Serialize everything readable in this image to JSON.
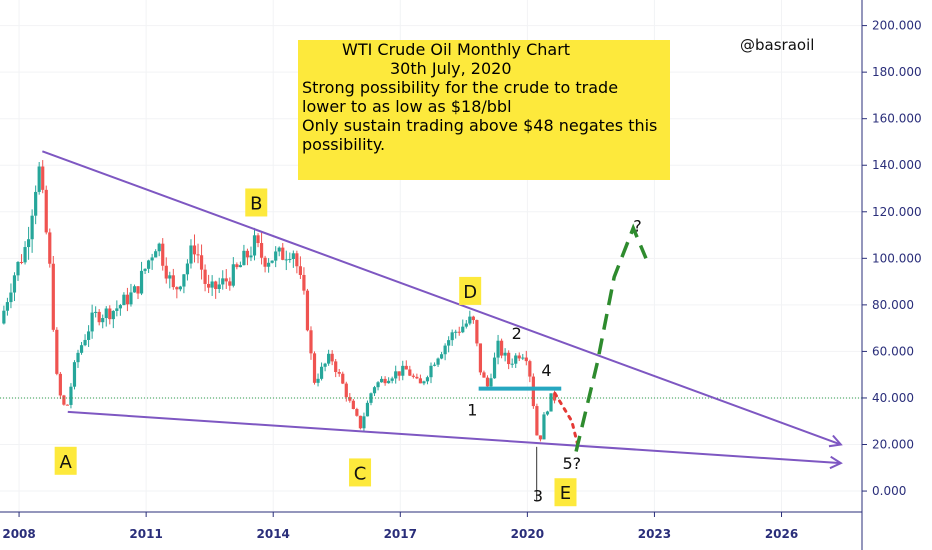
{
  "handle": "@basraoil",
  "annotation": {
    "lines": [
      "WTI Crude Oil Monthly Chart",
      "30th July, 2020",
      "Strong possibility for the crude to trade",
      "lower to as low as $18/bbl",
      "Only sustain trading above $48 negates this",
      "possibility."
    ]
  },
  "colors": {
    "up": "#26a69a",
    "down": "#ef5350",
    "trendline": "#7e57c2",
    "support": "#26a7c0",
    "projection": "#2e8b2e",
    "dotted_projection": "#e53935",
    "label_bg": "#fde93c",
    "axis_text": "#2a2e7a"
  },
  "chart_data": {
    "type": "candlestick",
    "x_ticks": [
      "2008",
      "2011",
      "2014",
      "2017",
      "2020",
      "2023",
      "2026"
    ],
    "y_ticks": [
      "0.000",
      "20.000",
      "40.000",
      "60.000",
      "80.000",
      "100.000",
      "120.000",
      "140.000",
      "160.000",
      "180.000",
      "200.000"
    ],
    "xlim": [
      2007.55,
      2027.9
    ],
    "ylim": [
      -9,
      211
    ],
    "current_price_line": 40,
    "price_path": [
      [
        2007.6,
        72
      ],
      [
        2007.9,
        92
      ],
      [
        2008.2,
        105
      ],
      [
        2008.5,
        140
      ],
      [
        2008.75,
        100
      ],
      [
        2008.95,
        44
      ],
      [
        2009.15,
        34
      ],
      [
        2009.4,
        58
      ],
      [
        2009.8,
        75
      ],
      [
        2010.3,
        78
      ],
      [
        2010.8,
        86
      ],
      [
        2011.3,
        108
      ],
      [
        2011.7,
        85
      ],
      [
        2012.2,
        106
      ],
      [
        2012.5,
        85
      ],
      [
        2012.9,
        90
      ],
      [
        2013.2,
        95
      ],
      [
        2013.6,
        106
      ],
      [
        2013.8,
        100
      ],
      [
        2014.2,
        101
      ],
      [
        2014.5,
        105
      ],
      [
        2014.8,
        80
      ],
      [
        2015.0,
        47
      ],
      [
        2015.4,
        58
      ],
      [
        2015.7,
        45
      ],
      [
        2015.95,
        33
      ],
      [
        2016.1,
        28
      ],
      [
        2016.4,
        45
      ],
      [
        2016.8,
        50
      ],
      [
        2017.2,
        52
      ],
      [
        2017.5,
        45
      ],
      [
        2017.9,
        58
      ],
      [
        2018.3,
        68
      ],
      [
        2018.75,
        74
      ],
      [
        2018.95,
        50
      ],
      [
        2019.1,
        45
      ],
      [
        2019.35,
        62
      ],
      [
        2019.6,
        55
      ],
      [
        2019.9,
        60
      ],
      [
        2020.05,
        58
      ],
      [
        2020.2,
        35
      ],
      [
        2020.3,
        19
      ],
      [
        2020.45,
        33
      ],
      [
        2020.6,
        40
      ]
    ],
    "trendlines": [
      {
        "name": "upper",
        "from": [
          2008.55,
          146
        ],
        "to": [
          2027.4,
          20
        ]
      },
      {
        "name": "lower",
        "from": [
          2009.15,
          34
        ],
        "to": [
          2027.4,
          12
        ]
      }
    ],
    "support_line": {
      "value": 44,
      "x_from": 2018.85,
      "x_to": 2020.8
    },
    "projections": [
      {
        "style": "dotted",
        "points": [
          [
            2020.65,
            42
          ],
          [
            2021.05,
            30
          ],
          [
            2021.2,
            19
          ]
        ]
      },
      {
        "style": "dashed-arrow",
        "points": [
          [
            2021.15,
            17
          ],
          [
            2021.65,
            55
          ],
          [
            2022.05,
            92
          ],
          [
            2022.5,
            113
          ],
          [
            2022.8,
            100
          ]
        ]
      }
    ],
    "labels": [
      {
        "text": "A",
        "x": 2009.1,
        "y": 13,
        "boxed": true
      },
      {
        "text": "B",
        "x": 2013.6,
        "y": 124,
        "boxed": true
      },
      {
        "text": "C",
        "x": 2016.05,
        "y": 8,
        "boxed": true
      },
      {
        "text": "D",
        "x": 2018.65,
        "y": 86,
        "boxed": true
      },
      {
        "text": "E",
        "x": 2020.9,
        "y": -0.5,
        "boxed": true
      },
      {
        "text": "1",
        "x": 2018.7,
        "y": 35
      },
      {
        "text": "2",
        "x": 2019.75,
        "y": 68
      },
      {
        "text": "3",
        "x": 2020.25,
        "y": -2
      },
      {
        "text": "4",
        "x": 2020.45,
        "y": 52
      },
      {
        "text": "5?",
        "x": 2021.05,
        "y": 12
      },
      {
        "text": "?",
        "x": 2022.6,
        "y": 114
      }
    ]
  }
}
